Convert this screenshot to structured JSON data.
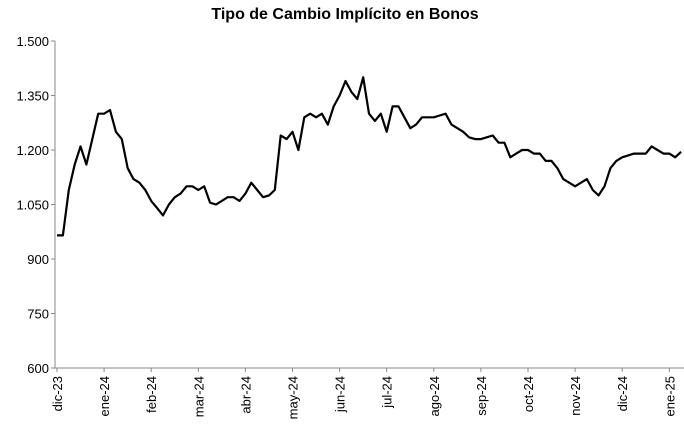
{
  "chart_data": {
    "type": "line",
    "title": "Tipo de Cambio Implícito en Bonos",
    "categories": [
      "dic-23",
      null,
      null,
      null,
      null,
      null,
      null,
      null,
      "ene-24",
      null,
      null,
      null,
      null,
      null,
      null,
      null,
      "feb-24",
      null,
      null,
      null,
      null,
      null,
      null,
      null,
      "mar-24",
      null,
      null,
      null,
      null,
      null,
      null,
      null,
      "abr-24",
      null,
      null,
      null,
      null,
      null,
      null,
      null,
      "may-24",
      null,
      null,
      null,
      null,
      null,
      null,
      null,
      "jun-24",
      null,
      null,
      null,
      null,
      null,
      null,
      null,
      "jul-24",
      null,
      null,
      null,
      null,
      null,
      null,
      null,
      "ago-24",
      null,
      null,
      null,
      null,
      null,
      null,
      null,
      "sep-24",
      null,
      null,
      null,
      null,
      null,
      null,
      null,
      "oct-24",
      null,
      null,
      null,
      null,
      null,
      null,
      null,
      "nov-24",
      null,
      null,
      null,
      null,
      null,
      null,
      null,
      "dic-24",
      null,
      null,
      null,
      null,
      null,
      null,
      null,
      "ene-25",
      null,
      null
    ],
    "values": [
      965,
      965,
      1090,
      1160,
      1210,
      1160,
      1230,
      1300,
      1300,
      1310,
      1250,
      1230,
      1150,
      1120,
      1110,
      1090,
      1060,
      1040,
      1020,
      1050,
      1070,
      1080,
      1100,
      1100,
      1090,
      1100,
      1055,
      1050,
      1060,
      1070,
      1070,
      1060,
      1080,
      1110,
      1090,
      1070,
      1075,
      1090,
      1240,
      1230,
      1250,
      1200,
      1290,
      1300,
      1290,
      1300,
      1270,
      1320,
      1350,
      1390,
      1360,
      1340,
      1400,
      1300,
      1280,
      1300,
      1250,
      1320,
      1320,
      1290,
      1260,
      1270,
      1290,
      1290,
      1290,
      1295,
      1300,
      1270,
      1260,
      1250,
      1235,
      1230,
      1230,
      1235,
      1240,
      1220,
      1220,
      1180,
      1190,
      1200,
      1200,
      1190,
      1190,
      1170,
      1170,
      1150,
      1120,
      1110,
      1100,
      1110,
      1120,
      1090,
      1075,
      1100,
      1150,
      1170,
      1180,
      1185,
      1190,
      1190,
      1190,
      1210,
      1200,
      1190,
      1190,
      1180,
      1195
    ],
    "color": "#000000",
    "ylim": [
      600,
      1500
    ],
    "yticks": [
      600,
      750,
      900,
      {
        "value": 1050,
        "label": "1.050"
      },
      {
        "value": 1200,
        "label": "1.200"
      },
      {
        "value": 1350,
        "label": "1.350"
      },
      {
        "value": 1500,
        "label": "1.500"
      }
    ],
    "grid": false
  }
}
